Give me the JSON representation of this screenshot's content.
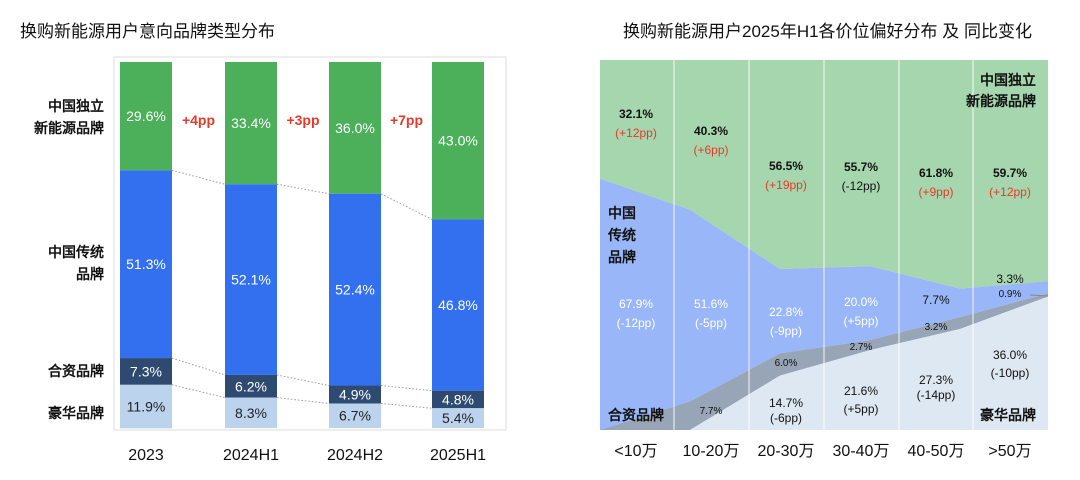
{
  "chart_data": [
    {
      "type": "bar",
      "stacked": true,
      "title": "换购新能源用户意向品牌类型分布",
      "categories": [
        "2023",
        "2024H1",
        "2024H2",
        "2025H1"
      ],
      "series": [
        {
          "name": "中国独立新能源品牌",
          "label_lines": [
            "中国独立",
            "新能源品牌"
          ],
          "color": "#4caf5a",
          "values": [
            29.6,
            33.4,
            36.0,
            43.0
          ]
        },
        {
          "name": "中国传统品牌",
          "label_lines": [
            "中国传统",
            "品牌"
          ],
          "color": "#3370f0",
          "values": [
            51.3,
            52.1,
            52.4,
            46.8
          ]
        },
        {
          "name": "合资品牌",
          "label_lines": [
            "合资品牌"
          ],
          "color": "#2e4a70",
          "values": [
            7.3,
            6.2,
            4.9,
            4.8
          ]
        },
        {
          "name": "豪华品牌",
          "label_lines": [
            "豪华品牌"
          ],
          "color": "#bcd3ee",
          "values": [
            11.9,
            8.3,
            6.7,
            5.4
          ]
        }
      ],
      "value_labels": [
        [
          "29.6%",
          "33.4%",
          "36.0%",
          "43.0%"
        ],
        [
          "51.3%",
          "52.1%",
          "52.4%",
          "46.8%"
        ],
        [
          "7.3%",
          "6.2%",
          "4.9%",
          "4.8%"
        ],
        [
          "11.9%",
          "8.3%",
          "6.7%",
          "5.4%"
        ]
      ],
      "changes": [
        "+4pp",
        "+3pp",
        "+7pp"
      ],
      "ylim": [
        0,
        100
      ]
    },
    {
      "type": "area",
      "stacked": true,
      "title": "换购新能源用户2025年H1各价位偏好分布 及 同比变化",
      "categories": [
        "<10万",
        "10-20万",
        "20-30万",
        "30-40万",
        "40-50万",
        ">50万"
      ],
      "series": [
        {
          "name": "中国独立新能源品牌",
          "label_lines": [
            "中国独立",
            "新能源品牌"
          ],
          "color": "#a6d6ae",
          "values": [
            32.1,
            40.3,
            56.5,
            55.7,
            61.8,
            59.7
          ],
          "labels": [
            "32.1%",
            "40.3%",
            "56.5%",
            "55.7%",
            "61.8%",
            "59.7%"
          ],
          "changes": [
            "(+12pp)",
            "(+6pp)",
            "(+19pp)",
            "(-12pp)",
            "(+9pp)",
            "(+12pp)"
          ]
        },
        {
          "name": "中国传统品牌",
          "label_lines": [
            "中国",
            "传统",
            "品牌"
          ],
          "color": "#98b6f8",
          "values": [
            67.9,
            51.6,
            22.8,
            20.0,
            7.7,
            3.3
          ],
          "labels": [
            "67.9%",
            "51.6%",
            "22.8%",
            "20.0%",
            "7.7%",
            "3.3%"
          ],
          "changes": [
            "(-12pp)",
            "(-5pp)",
            "(-9pp)",
            "(+5pp)",
            "",
            ""
          ]
        },
        {
          "name": "合资品牌",
          "label_lines": [
            "合资品牌"
          ],
          "color": "#97a5b6",
          "values": [
            0,
            7.7,
            6.0,
            2.7,
            3.2,
            0.9
          ],
          "labels": [
            "",
            "7.7%",
            "6.0%",
            "2.7%",
            "3.2%",
            "0.9%"
          ]
        },
        {
          "name": "豪华品牌",
          "label_lines": [
            "豪华品牌"
          ],
          "color": "#dee8f3",
          "values": [
            0,
            0,
            14.7,
            21.6,
            27.3,
            36.0
          ],
          "labels": [
            "",
            "",
            "14.7%",
            "21.6%",
            "27.3%",
            "36.0%"
          ],
          "changes": [
            "",
            "",
            "(-6pp)",
            "(+5pp)",
            "(-14pp)",
            "(-10pp)"
          ]
        }
      ]
    }
  ]
}
